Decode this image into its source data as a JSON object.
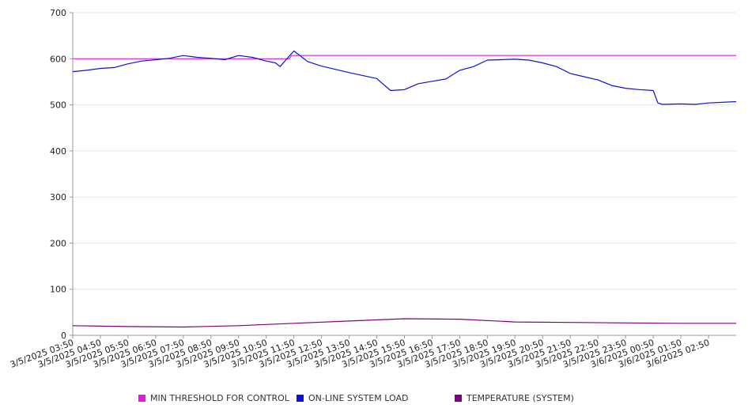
{
  "chart_data": {
    "type": "line",
    "title": "",
    "xlabel": "",
    "ylabel": "",
    "ylim": [
      0,
      700
    ],
    "yticks": [
      0,
      100,
      200,
      300,
      400,
      500,
      600,
      700
    ],
    "grid": true,
    "legend_position": "bottom",
    "x_tick_labels": [
      "3/5/2025 03:50",
      "3/5/2025 04:50",
      "3/5/2025 05:50",
      "3/5/2025 06:50",
      "3/5/2025 07:50",
      "3/5/2025 08:50",
      "3/5/2025 09:50",
      "3/5/2025 10:50",
      "3/5/2025 11:50",
      "3/5/2025 12:50",
      "3/5/2025 13:50",
      "3/5/2025 14:50",
      "3/5/2025 15:50",
      "3/5/2025 16:50",
      "3/5/2025 17:50",
      "3/5/2025 18:50",
      "3/5/2025 19:50",
      "3/5/2025 20:50",
      "3/5/2025 21:50",
      "3/5/2025 22:50",
      "3/5/2025 23:50",
      "3/6/2025 00:50",
      "3/6/2025 01:50",
      "3/6/2025 02:50"
    ],
    "x_start": "3/5/2025 03:50",
    "x_end": "3/6/2025 03:50",
    "series": [
      {
        "name": "MIN THRESHOLD FOR CONTROL",
        "color": "#e21be2",
        "x": [
          "3/5/2025 03:50",
          "3/5/2025 11:40",
          "3/5/2025 11:45",
          "3/6/2025 03:50"
        ],
        "values": [
          600,
          600,
          607,
          607
        ]
      },
      {
        "name": "ON-LINE SYSTEM LOAD",
        "color": "#1010d8",
        "x": [
          "3/5/2025 03:50",
          "3/5/2025 04:20",
          "3/5/2025 04:50",
          "3/5/2025 05:20",
          "3/5/2025 05:50",
          "3/5/2025 06:20",
          "3/5/2025 06:50",
          "3/5/2025 07:20",
          "3/5/2025 07:50",
          "3/5/2025 08:20",
          "3/5/2025 08:50",
          "3/5/2025 09:20",
          "3/5/2025 09:50",
          "3/5/2025 10:20",
          "3/5/2025 10:50",
          "3/5/2025 11:10",
          "3/5/2025 11:20",
          "3/5/2025 11:50",
          "3/5/2025 12:20",
          "3/5/2025 12:50",
          "3/5/2025 13:50",
          "3/5/2025 14:50",
          "3/5/2025 15:20",
          "3/5/2025 15:50",
          "3/5/2025 16:20",
          "3/5/2025 16:50",
          "3/5/2025 17:20",
          "3/5/2025 17:50",
          "3/5/2025 18:20",
          "3/5/2025 18:50",
          "3/5/2025 19:20",
          "3/5/2025 19:50",
          "3/5/2025 20:20",
          "3/5/2025 20:50",
          "3/5/2025 21:20",
          "3/5/2025 21:50",
          "3/5/2025 22:20",
          "3/5/2025 22:50",
          "3/5/2025 23:20",
          "3/5/2025 23:50",
          "3/6/2025 00:20",
          "3/6/2025 00:50",
          "3/6/2025 01:00",
          "3/6/2025 01:10",
          "3/6/2025 01:50",
          "3/6/2025 02:20",
          "3/6/2025 02:50",
          "3/6/2025 03:50"
        ],
        "values": [
          572,
          575,
          579,
          581,
          589,
          595,
          598,
          601,
          607,
          603,
          601,
          598,
          607,
          603,
          595,
          591,
          583,
          617,
          594,
          584,
          570,
          557,
          531,
          533,
          546,
          551,
          556,
          575,
          583,
          597,
          598,
          599,
          597,
          591,
          583,
          568,
          561,
          554,
          542,
          536,
          533,
          531,
          504,
          501,
          502,
          501,
          504,
          507
        ]
      },
      {
        "name": "TEMPERATURE (SYSTEM)",
        "color": "#800080",
        "x": [
          "3/5/2025 03:50",
          "3/5/2025 05:50",
          "3/5/2025 07:50",
          "3/5/2025 09:50",
          "3/5/2025 11:50",
          "3/5/2025 13:50",
          "3/5/2025 15:50",
          "3/5/2025 17:50",
          "3/5/2025 19:50",
          "3/5/2025 21:50",
          "3/5/2025 23:50",
          "3/6/2025 01:50",
          "3/6/2025 03:50"
        ],
        "values": [
          21,
          19,
          18,
          21,
          26,
          31,
          36,
          35,
          29,
          28,
          27,
          26,
          26
        ]
      }
    ]
  }
}
